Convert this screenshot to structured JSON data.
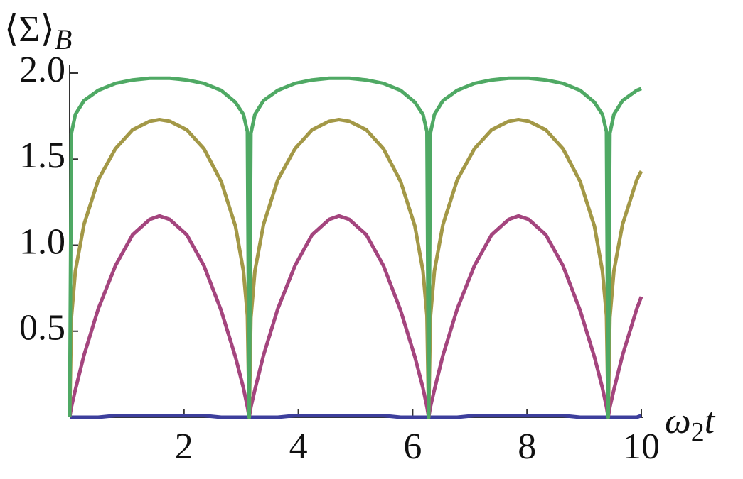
{
  "chart_data": {
    "type": "line",
    "y_label": [
      "⟨Σ⟩",
      "B"
    ],
    "x_label": [
      "ω",
      "2",
      "t"
    ],
    "x": [
      0,
      0.03,
      0.1,
      0.25,
      0.5,
      0.8,
      1.1,
      1.4,
      1.57,
      1.75,
      2.05,
      2.35,
      2.65,
      2.9,
      3.04,
      3.11,
      3.14,
      3.17,
      3.24,
      3.39,
      3.64,
      3.94,
      4.24,
      4.54,
      4.71,
      4.89,
      5.19,
      5.49,
      5.79,
      6.04,
      6.18,
      6.25,
      6.28,
      6.31,
      6.38,
      6.53,
      6.78,
      7.08,
      7.38,
      7.68,
      7.85,
      8.03,
      8.33,
      8.63,
      8.93,
      9.18,
      9.32,
      9.39,
      9.42,
      9.45,
      9.52,
      9.67,
      9.92,
      10
    ],
    "series": [
      {
        "color": "#3d3f9c",
        "values": [
          0,
          0,
          0,
          0,
          0,
          0.01,
          0.01,
          0.01,
          0.01,
          0.01,
          0.01,
          0.01,
          0,
          0,
          0,
          0,
          0,
          0,
          0,
          0,
          0,
          0.01,
          0.01,
          0.01,
          0.01,
          0.01,
          0.01,
          0.01,
          0,
          0,
          0,
          0,
          0,
          0,
          0,
          0,
          0,
          0.01,
          0.01,
          0.01,
          0.01,
          0.01,
          0.01,
          0.01,
          0,
          0,
          0,
          0,
          0,
          0,
          0,
          0,
          0,
          0.01
        ]
      },
      {
        "color": "#a4457e",
        "values": [
          0,
          0.06,
          0.16,
          0.36,
          0.63,
          0.88,
          1.06,
          1.15,
          1.17,
          1.15,
          1.06,
          0.88,
          0.62,
          0.35,
          0.17,
          0.06,
          0,
          0.06,
          0.16,
          0.36,
          0.63,
          0.88,
          1.06,
          1.15,
          1.17,
          1.15,
          1.06,
          0.88,
          0.62,
          0.35,
          0.17,
          0.06,
          0,
          0.06,
          0.16,
          0.36,
          0.63,
          0.88,
          1.06,
          1.15,
          1.17,
          1.15,
          1.06,
          0.88,
          0.62,
          0.35,
          0.17,
          0.06,
          0,
          0.06,
          0.16,
          0.36,
          0.63,
          0.7
        ]
      },
      {
        "color": "#a39847",
        "values": [
          0,
          0.58,
          0.85,
          1.12,
          1.38,
          1.56,
          1.67,
          1.72,
          1.73,
          1.72,
          1.67,
          1.56,
          1.37,
          1.11,
          0.85,
          0.59,
          0,
          0.58,
          0.85,
          1.12,
          1.38,
          1.56,
          1.67,
          1.72,
          1.73,
          1.72,
          1.67,
          1.56,
          1.37,
          1.11,
          0.85,
          0.59,
          0,
          0.58,
          0.85,
          1.12,
          1.38,
          1.56,
          1.67,
          1.72,
          1.73,
          1.72,
          1.67,
          1.56,
          1.37,
          1.11,
          0.85,
          0.59,
          0,
          0.58,
          0.85,
          1.12,
          1.38,
          1.43
        ]
      },
      {
        "color": "#4fa964",
        "values": [
          0,
          1.65,
          1.76,
          1.84,
          1.9,
          1.94,
          1.96,
          1.97,
          1.97,
          1.97,
          1.96,
          1.94,
          1.9,
          1.83,
          1.76,
          1.66,
          0,
          1.65,
          1.76,
          1.84,
          1.9,
          1.94,
          1.96,
          1.97,
          1.97,
          1.97,
          1.96,
          1.94,
          1.9,
          1.83,
          1.76,
          1.66,
          0,
          1.65,
          1.76,
          1.84,
          1.9,
          1.94,
          1.96,
          1.97,
          1.97,
          1.97,
          1.96,
          1.94,
          1.9,
          1.83,
          1.76,
          1.66,
          0,
          1.65,
          1.76,
          1.84,
          1.9,
          1.91
        ]
      }
    ],
    "xlim": [
      0,
      10
    ],
    "ylim": [
      0,
      2.0
    ],
    "xticks": [
      2,
      4,
      6,
      8,
      10
    ],
    "yticks": [
      0.5,
      {
        "value": 1,
        "label": "1.0"
      },
      1.5,
      {
        "value": 2,
        "label": "2.0"
      }
    ]
  }
}
